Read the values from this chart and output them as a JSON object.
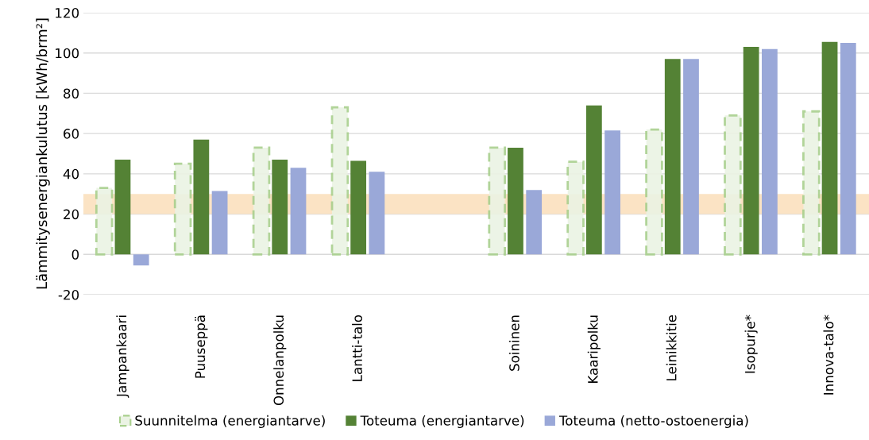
{
  "chart_data": {
    "type": "bar",
    "ylabel": "Lämmitysenergiankulutus [kWh/brm²]",
    "categories": [
      "Jampankaari",
      "Puuseppä",
      "Onnelanpolku",
      "Lantti-talo",
      null,
      "Soininen",
      "Kaaripolku",
      "Leinikkitie",
      "Isopurje*",
      "Innova-talo*"
    ],
    "series": [
      {
        "name": "Suunnitelma (energiantarve)",
        "color": "#ebf3e4",
        "line_style": "dashed",
        "values": [
          33,
          45,
          53,
          73,
          null,
          53,
          46,
          62,
          69,
          71
        ]
      },
      {
        "name": "Toteuma (energiantarve)",
        "color": "#548235",
        "values": [
          47,
          57,
          47,
          46.5,
          null,
          53,
          74,
          97,
          103,
          105.5
        ]
      },
      {
        "name": "Toteuma (netto-ostoenergia)",
        "color": "#9aa8d8",
        "values": [
          -5.5,
          31.5,
          43,
          41,
          null,
          32,
          61.5,
          97,
          102,
          105
        ]
      }
    ],
    "bands": [
      {
        "axis": "y",
        "from": 20,
        "to": 30,
        "color": "#fbe3c4"
      }
    ],
    "ylim": [
      -20,
      120
    ],
    "yticks": [
      -20,
      0,
      20,
      40,
      60,
      80,
      100,
      120
    ],
    "grid": "y",
    "legend": "bottom"
  }
}
